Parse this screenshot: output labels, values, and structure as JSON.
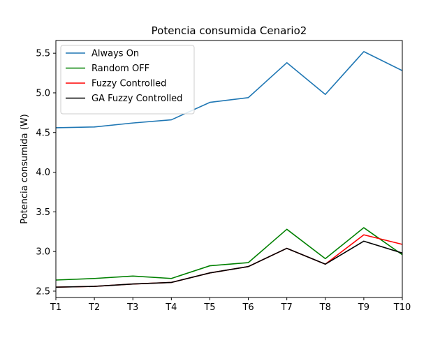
{
  "chart_data": {
    "type": "line",
    "title": "Potencia consumida Cenario2",
    "xlabel": "",
    "ylabel": "Potencia consumida (W)",
    "categories": [
      "T1",
      "T2",
      "T3",
      "T4",
      "T5",
      "T6",
      "T7",
      "T8",
      "T9",
      "T10"
    ],
    "ylim": [
      2.42,
      5.66
    ],
    "yticks": [
      2.5,
      3.0,
      3.5,
      4.0,
      4.5,
      5.0,
      5.5
    ],
    "yticks_labels": [
      "2.5",
      "3.0",
      "3.5",
      "4.0",
      "4.5",
      "5.0",
      "5.5"
    ],
    "grid": false,
    "legend_position": "top-left",
    "series": [
      {
        "name": "Always On",
        "color": "#1f77b4",
        "values": [
          4.56,
          4.57,
          4.62,
          4.66,
          4.88,
          4.94,
          5.38,
          4.98,
          5.52,
          5.28
        ]
      },
      {
        "name": "Random OFF",
        "color": "#008000",
        "values": [
          2.64,
          2.66,
          2.69,
          2.66,
          2.82,
          2.86,
          3.28,
          2.91,
          3.3,
          2.96
        ]
      },
      {
        "name": "Fuzzy Controlled",
        "color": "#ff0000",
        "values": [
          2.55,
          2.56,
          2.59,
          2.61,
          2.73,
          2.81,
          3.04,
          2.84,
          3.21,
          3.09
        ]
      },
      {
        "name": "GA Fuzzy Controlled",
        "color": "#000000",
        "values": [
          2.55,
          2.56,
          2.59,
          2.61,
          2.73,
          2.81,
          3.04,
          2.84,
          3.13,
          2.98
        ]
      }
    ]
  }
}
